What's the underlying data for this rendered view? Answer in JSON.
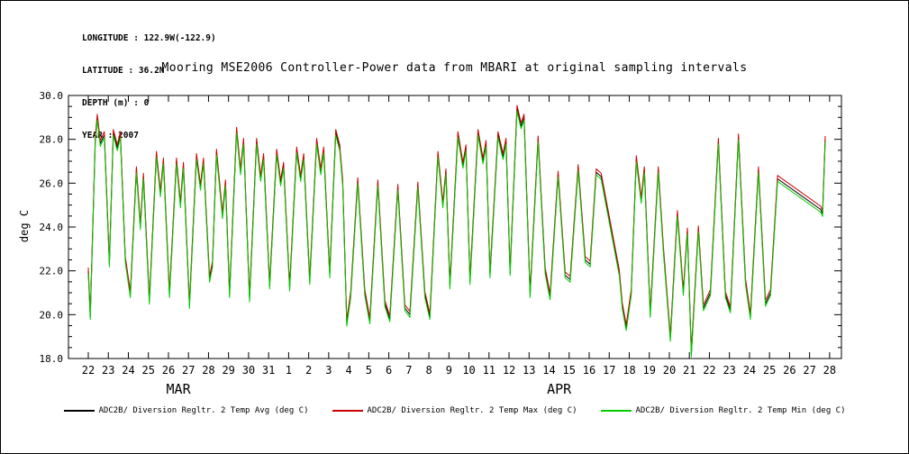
{
  "page": {
    "title": "Mooring MSE2006 Controller-Power data from MBARI at original sampling intervals"
  },
  "header": {
    "lines": {
      "longitude": "LONGITUDE : 122.9W(-122.9)",
      "latitude": "LATITUDE : 36.2N",
      "depth": "DEPTH (m) : 0",
      "year": "YEAR : 2007"
    }
  },
  "chart_data": {
    "type": "line",
    "title": "Mooring MSE2006 Controller-Power data from MBARI at original sampling intervals",
    "xlabel": "",
    "ylabel": "deg C",
    "ylim": [
      18.0,
      30.0
    ],
    "y_major_tick_step": 2.0,
    "y_minor_tick_step": 0.5,
    "y_tick_labels": [
      "18.0",
      "20.0",
      "22.0",
      "24.0",
      "26.0",
      "28.0",
      "30.0"
    ],
    "grid": false,
    "legend_position": "bottom-center",
    "x_note": "x is in days: day 0 = 22 MAR 2007 ... day 37 = 28 APR 2007",
    "x_day_labels": [
      "22",
      "23",
      "24",
      "25",
      "26",
      "27",
      "28",
      "29",
      "30",
      "31",
      "1",
      "2",
      "3",
      "4",
      "5",
      "6",
      "7",
      "8",
      "9",
      "10",
      "11",
      "12",
      "13",
      "14",
      "15",
      "16",
      "17",
      "18",
      "19",
      "20",
      "21",
      "22",
      "23",
      "24",
      "25",
      "26",
      "27",
      "28"
    ],
    "month_labels": [
      {
        "label": "MAR",
        "day": 4.5
      },
      {
        "label": "APR",
        "day": 23.5
      }
    ],
    "series": [
      {
        "key": "avg",
        "name": "ADC2B/ Diversion Regltr. 2 Temp Avg (deg C)",
        "color": "#000000",
        "offset_from_avg": 0
      },
      {
        "key": "max",
        "name": "ADC2B/ Diversion Regltr. 2 Temp Max (deg C)",
        "color": "#cc0000",
        "offset_from_avg": 0.15
      },
      {
        "key": "min",
        "name": "ADC2B/ Diversion Regltr. 2 Temp Min (deg C)",
        "color": "#00cc00",
        "offset_from_avg": -0.12
      }
    ],
    "x": [
      0.0,
      0.1,
      0.35,
      0.45,
      0.6,
      0.8,
      1.05,
      1.25,
      1.45,
      1.6,
      1.85,
      2.1,
      2.4,
      2.6,
      2.75,
      3.05,
      3.4,
      3.6,
      3.75,
      4.05,
      4.4,
      4.6,
      4.75,
      5.05,
      5.4,
      5.6,
      5.75,
      6.05,
      6.2,
      6.4,
      6.7,
      6.85,
      7.05,
      7.4,
      7.6,
      7.75,
      8.05,
      8.4,
      8.6,
      8.75,
      9.05,
      9.4,
      9.6,
      9.75,
      10.05,
      10.4,
      10.6,
      10.75,
      11.05,
      11.4,
      11.6,
      11.75,
      12.05,
      12.35,
      12.55,
      12.7,
      12.9,
      13.1,
      13.45,
      13.8,
      14.05,
      14.45,
      14.8,
      15.05,
      15.45,
      15.8,
      16.05,
      16.45,
      16.8,
      17.05,
      17.45,
      17.7,
      17.85,
      18.05,
      18.45,
      18.7,
      18.85,
      19.05,
      19.45,
      19.7,
      19.85,
      20.05,
      20.45,
      20.7,
      20.85,
      21.05,
      21.4,
      21.6,
      21.75,
      22.05,
      22.45,
      22.8,
      23.05,
      23.45,
      23.8,
      24.05,
      24.45,
      24.8,
      25.05,
      25.35,
      25.6,
      26.5,
      26.65,
      26.85,
      27.1,
      27.35,
      27.6,
      27.75,
      28.05,
      28.45,
      28.7,
      29.05,
      29.4,
      29.7,
      29.9,
      30.1,
      30.45,
      30.7,
      31.05,
      31.45,
      31.8,
      32.05,
      32.45,
      32.8,
      33.05,
      33.45,
      33.8,
      34.05,
      34.4,
      36.55,
      36.65,
      36.78
    ],
    "avg_y": [
      22.0,
      19.9,
      28.0,
      29.0,
      27.8,
      28.2,
      22.3,
      28.3,
      27.6,
      28.2,
      22.5,
      20.9,
      26.6,
      24.0,
      26.3,
      20.6,
      27.3,
      25.5,
      27.0,
      20.9,
      27.0,
      25.0,
      26.8,
      20.4,
      27.2,
      25.8,
      27.0,
      21.6,
      22.3,
      27.4,
      24.5,
      26.0,
      20.9,
      28.4,
      26.5,
      27.9,
      20.7,
      27.9,
      26.2,
      27.2,
      21.3,
      27.4,
      26.0,
      26.8,
      21.2,
      27.5,
      26.2,
      27.2,
      21.5,
      27.9,
      26.5,
      27.5,
      21.8,
      28.3,
      27.6,
      26.0,
      19.6,
      20.9,
      26.1,
      21.0,
      19.7,
      26.0,
      20.5,
      19.8,
      25.8,
      20.3,
      20.0,
      25.9,
      20.9,
      19.9,
      27.3,
      25.0,
      26.5,
      21.3,
      28.2,
      26.8,
      27.6,
      21.5,
      28.3,
      27.0,
      27.8,
      21.8,
      28.2,
      27.2,
      27.9,
      21.9,
      29.4,
      28.6,
      29.0,
      20.9,
      28.0,
      22.0,
      20.8,
      26.4,
      21.8,
      21.6,
      26.7,
      22.5,
      22.3,
      26.5,
      26.3,
      21.9,
      20.4,
      19.4,
      21.0,
      27.1,
      25.2,
      26.6,
      20.0,
      26.6,
      23.0,
      18.9,
      24.6,
      21.0,
      23.8,
      18.2,
      23.9,
      20.3,
      21.0,
      27.9,
      20.9,
      20.2,
      28.1,
      21.5,
      19.9,
      26.6,
      20.5,
      21.0,
      26.2,
      24.8,
      24.6,
      28.0
    ]
  }
}
